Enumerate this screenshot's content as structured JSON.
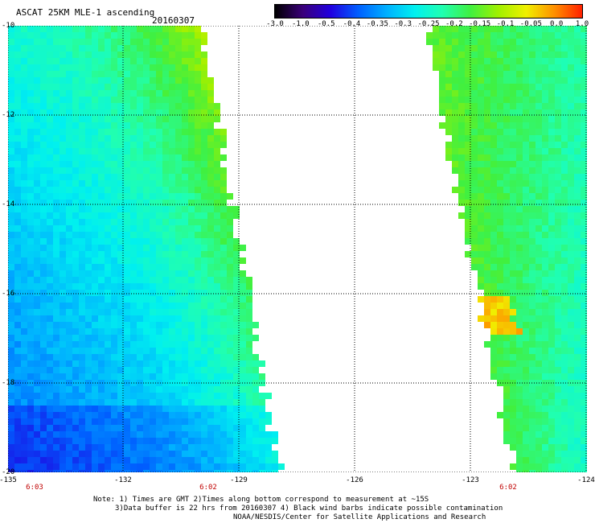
{
  "title": "ASCAT 25KM MLE-1 ascending",
  "date": "20160307",
  "colorbar": {
    "tick_labels": [
      "-3.0",
      "-1.0",
      "-0.5",
      "-0.4",
      "-0.35",
      "-0.3",
      "-0.25",
      "-0.2",
      "-0.15",
      "-0.1",
      "-0.05",
      "0.0",
      "1.0"
    ],
    "colors": [
      "#000000",
      "#3a007a",
      "#2000e0",
      "#0060ff",
      "#00b0ff",
      "#00f0f0",
      "#20ffb0",
      "#40f040",
      "#a0f000",
      "#f0f000",
      "#ff9000",
      "#ff2000"
    ]
  },
  "map": {
    "lon_range": [
      -135,
      -124
    ],
    "lat_range": [
      -20,
      -10
    ],
    "y_axis_labels": [
      "-10",
      "-12",
      "-14",
      "-16",
      "-18",
      "-20"
    ],
    "x_axis_labels": [
      "-135",
      "-132",
      "-129",
      "-126",
      "-123",
      "-124"
    ],
    "pass_times": [
      "6:03",
      "6:02",
      "6:02"
    ],
    "grid": true
  },
  "notes": [
    "Note: 1) Times are GMT 2)Times along bottom correspond to measurement at ~15S",
    "3)Data buffer is 22 hrs from 20160307 4) Black wind barbs indicate possible contamination",
    "NOAA/NESDIS/Center for Satellite Applications and Research"
  ]
}
